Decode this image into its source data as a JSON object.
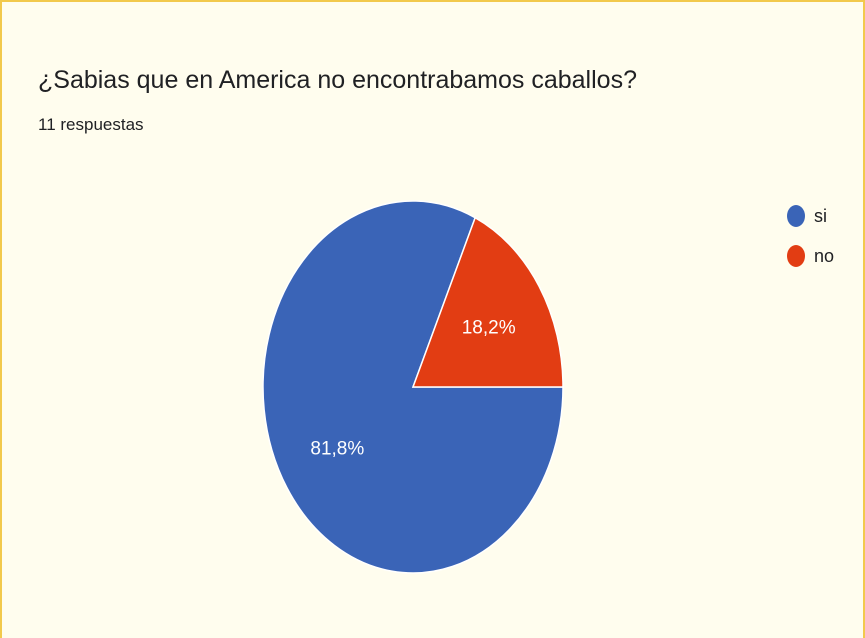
{
  "card": {
    "title": "¿Sabias que en America no encontrabamos caballos?",
    "subtitle": "11 respuestas"
  },
  "chart_data": {
    "type": "pie",
    "categories": [
      "si",
      "no"
    ],
    "values": [
      81.8,
      18.2
    ],
    "value_labels": [
      "81,8%",
      "18,2%"
    ],
    "colors": [
      "#3a64b7",
      "#e23d13"
    ],
    "legend_position": "top-right"
  }
}
